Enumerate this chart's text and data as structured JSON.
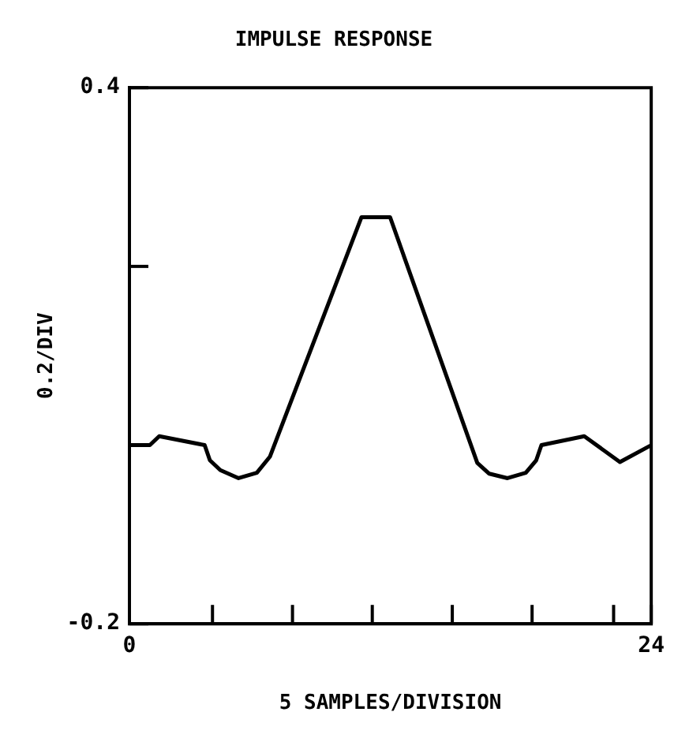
{
  "chart_data": {
    "type": "line",
    "title": "IMPULSE RESPONSE",
    "xlabel": "5 SAMPLES/DIVISION",
    "ylabel": "0.2/DIV",
    "x": [
      0,
      0.94,
      1.37,
      3.46,
      3.7,
      4.18,
      5.02,
      5.86,
      6.46,
      10.67,
      11.99,
      16.0,
      16.55,
      17.39,
      18.23,
      18.71,
      18.95,
      20.92,
      22.56,
      23.93
    ],
    "series": [
      {
        "color": "#000000",
        "values": [
          0,
          0,
          0.01,
          0,
          -0.017,
          -0.028,
          -0.037,
          -0.031,
          -0.013,
          0.255,
          0.255,
          -0.02,
          -0.032,
          -0.037,
          -0.031,
          -0.017,
          0,
          0.01,
          -0.019,
          -0.001
        ]
      }
    ],
    "xlim": [
      0,
      24
    ],
    "ylim": [
      -0.2,
      0.4
    ],
    "xticks": [
      0,
      {
        "value": 3.82,
        "label": null
      },
      {
        "value": 7.5,
        "label": null
      },
      {
        "value": 11.17,
        "label": null
      },
      {
        "value": 14.85,
        "label": null
      },
      {
        "value": 18.52,
        "label": null
      },
      {
        "value": 22.27,
        "label": null
      },
      24
    ],
    "yticks": [
      -0.2,
      {
        "value": 0.2,
        "label": null
      },
      0.4
    ],
    "grid": false,
    "legend": false,
    "marker": "none",
    "line_style": "solid"
  }
}
